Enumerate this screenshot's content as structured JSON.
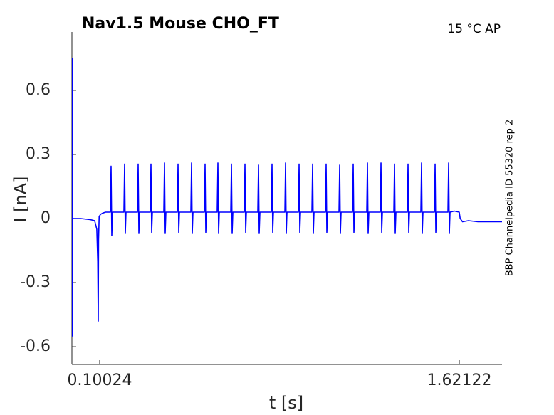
{
  "chart_data": {
    "type": "line",
    "title": "Nav1.5  Mouse  CHO_FT",
    "annotation": "15 °C  AP",
    "side_note": "BBP Channelpedia ID 55320 rep 2",
    "xlabel": "t [s]",
    "ylabel": "I [nA]",
    "xlim": [
      -0.0172,
      1.8019
    ],
    "xticks": [
      0.10024,
      1.62122
    ],
    "ylim": [
      -0.683,
      0.873
    ],
    "yticks": [
      0.6,
      0.3,
      0,
      -0.3,
      -0.6
    ],
    "grid": false,
    "series": [
      {
        "name": null,
        "color": "#0000ff",
        "x": [
          -0.0172,
          -0.0166,
          -0.0163,
          -0.016,
          -0.0155,
          0.02,
          0.06,
          0.079,
          0.088,
          0.092,
          0.0942,
          0.0955,
          0.098,
          0.104,
          0.112,
          0.125,
          0.14,
          0.1454,
          0.1484,
          0.1514,
          0.1544,
          0.2026,
          0.2056,
          0.2086,
          0.2116,
          0.2599,
          0.2629,
          0.2659,
          0.2689,
          0.3141,
          0.3171,
          0.3201,
          0.3231,
          0.3713,
          0.3743,
          0.3773,
          0.3803,
          0.4286,
          0.4316,
          0.4346,
          0.4376,
          0.4858,
          0.4888,
          0.4918,
          0.4948,
          0.543,
          0.546,
          0.549,
          0.552,
          0.5972,
          0.6002,
          0.6032,
          0.6062,
          0.6545,
          0.6575,
          0.6605,
          0.6635,
          0.7117,
          0.7147,
          0.7177,
          0.7207,
          0.7689,
          0.7719,
          0.7749,
          0.7779,
          0.8261,
          0.8291,
          0.8321,
          0.8351,
          0.8834,
          0.8864,
          0.8894,
          0.8924,
          0.9406,
          0.9436,
          0.9466,
          0.9496,
          0.9978,
          1.0008,
          1.0038,
          1.0068,
          1.055,
          1.058,
          1.061,
          1.064,
          1.1123,
          1.1153,
          1.1183,
          1.1213,
          1.1695,
          1.1725,
          1.1755,
          1.1785,
          1.2297,
          1.2327,
          1.2357,
          1.2387,
          1.287,
          1.29,
          1.293,
          1.296,
          1.3442,
          1.3472,
          1.3502,
          1.3532,
          1.4014,
          1.4044,
          1.4074,
          1.4104,
          1.4586,
          1.4616,
          1.4646,
          1.4676,
          1.5159,
          1.5189,
          1.5219,
          1.5249,
          1.5731,
          1.5761,
          1.5791,
          1.5821,
          1.6,
          1.621,
          1.625,
          1.635,
          1.66,
          1.7,
          1.75,
          1.8019
        ],
        "values": [
          -0.08,
          0.75,
          -0.55,
          0,
          0,
          0,
          -0.005,
          -0.01,
          -0.05,
          -0.2,
          -0.48,
          -0.1,
          0.01,
          0.02,
          0.025,
          0.03,
          0.03,
          0.03,
          0.245,
          -0.08,
          0.03,
          0.03,
          0.255,
          -0.07,
          0.03,
          0.03,
          0.255,
          -0.07,
          0.03,
          0.03,
          0.255,
          -0.065,
          0.03,
          0.03,
          0.26,
          -0.07,
          0.03,
          0.03,
          0.255,
          -0.065,
          0.03,
          0.03,
          0.26,
          -0.07,
          0.03,
          0.03,
          0.255,
          -0.065,
          0.03,
          0.03,
          0.26,
          -0.07,
          0.03,
          0.03,
          0.255,
          -0.07,
          0.03,
          0.03,
          0.255,
          -0.065,
          0.03,
          0.03,
          0.25,
          -0.07,
          0.03,
          0.03,
          0.255,
          -0.065,
          0.03,
          0.03,
          0.26,
          -0.07,
          0.03,
          0.03,
          0.255,
          -0.065,
          0.03,
          0.03,
          0.255,
          -0.07,
          0.03,
          0.03,
          0.255,
          -0.065,
          0.03,
          0.03,
          0.25,
          -0.07,
          0.03,
          0.03,
          0.255,
          -0.065,
          0.03,
          0.03,
          0.26,
          -0.07,
          0.03,
          0.03,
          0.26,
          -0.065,
          0.03,
          0.03,
          0.255,
          -0.07,
          0.03,
          0.03,
          0.255,
          -0.065,
          0.03,
          0.03,
          0.26,
          -0.07,
          0.03,
          0.03,
          0.255,
          -0.065,
          0.03,
          0.03,
          0.26,
          -0.07,
          0.03,
          0.035,
          0.03,
          0,
          -0.015,
          -0.01,
          -0.015,
          -0.015,
          -0.015
        ]
      }
    ]
  }
}
